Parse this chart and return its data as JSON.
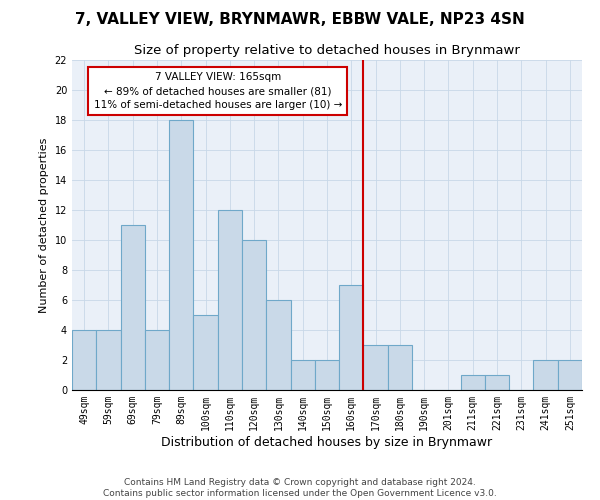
{
  "title": "7, VALLEY VIEW, BRYNMAWR, EBBW VALE, NP23 4SN",
  "subtitle": "Size of property relative to detached houses in Brynmawr",
  "xlabel": "Distribution of detached houses by size in Brynmawr",
  "ylabel": "Number of detached properties",
  "categories": [
    "49sqm",
    "59sqm",
    "69sqm",
    "79sqm",
    "89sqm",
    "100sqm",
    "110sqm",
    "120sqm",
    "130sqm",
    "140sqm",
    "150sqm",
    "160sqm",
    "170sqm",
    "180sqm",
    "190sqm",
    "201sqm",
    "211sqm",
    "221sqm",
    "231sqm",
    "241sqm",
    "251sqm"
  ],
  "values": [
    4,
    4,
    11,
    4,
    18,
    5,
    12,
    10,
    6,
    2,
    2,
    7,
    3,
    3,
    0,
    0,
    1,
    1,
    0,
    2,
    2
  ],
  "bar_color": "#c9d9e8",
  "bar_edge_color": "#6fa8c9",
  "grid_color": "#c8d8e8",
  "background_color": "#eaf0f8",
  "vline_color": "#cc0000",
  "annotation_text": "7 VALLEY VIEW: 165sqm\n← 89% of detached houses are smaller (81)\n11% of semi-detached houses are larger (10) →",
  "annotation_box_color": "#cc0000",
  "ylim": [
    0,
    22
  ],
  "yticks": [
    0,
    2,
    4,
    6,
    8,
    10,
    12,
    14,
    16,
    18,
    20,
    22
  ],
  "footer_line1": "Contains HM Land Registry data © Crown copyright and database right 2024.",
  "footer_line2": "Contains public sector information licensed under the Open Government Licence v3.0.",
  "title_fontsize": 11,
  "subtitle_fontsize": 9.5,
  "xlabel_fontsize": 9,
  "ylabel_fontsize": 8,
  "tick_fontsize": 7,
  "footer_fontsize": 6.5,
  "annotation_fontsize": 7.5
}
